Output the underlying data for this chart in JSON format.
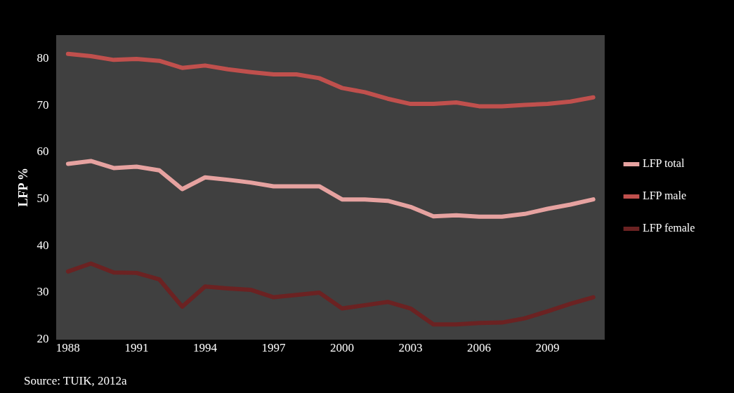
{
  "chart_data": {
    "type": "line",
    "ylabel": "LFP %",
    "categories": [
      "1988",
      null,
      null,
      "1991",
      null,
      null,
      "1994",
      null,
      null,
      "1997",
      null,
      null,
      "2000",
      null,
      null,
      "2003",
      null,
      null,
      "2006",
      null,
      null,
      "2009",
      null,
      null
    ],
    "series": [
      {
        "name": "LFP total",
        "color": "#e6a2a0",
        "values": [
          57.5,
          58.1,
          56.6,
          56.9,
          56.1,
          52.1,
          54.6,
          54.1,
          53.5,
          52.7,
          52.7,
          52.7,
          49.9,
          49.9,
          49.6,
          48.3,
          46.3,
          46.5,
          46.2,
          46.2,
          46.8,
          47.9,
          48.8,
          49.9
        ]
      },
      {
        "name": "LFP male",
        "color": "#c0504d",
        "values": [
          81,
          80.5,
          79.7,
          79.9,
          79.5,
          78,
          78.5,
          77.7,
          77.1,
          76.6,
          76.6,
          75.8,
          73.7,
          72.8,
          71.4,
          70.3,
          70.3,
          70.6,
          69.8,
          69.8,
          70.1,
          70.3,
          70.8,
          71.7
        ]
      },
      {
        "name": "LFP female",
        "color": "#6b2222",
        "values": [
          34.5,
          36.2,
          34.3,
          34.2,
          32.8,
          27.0,
          31.3,
          30.9,
          30.6,
          29.0,
          29.5,
          30.0,
          26.6,
          27.3,
          28.0,
          26.6,
          23.2,
          23.2,
          23.5,
          23.6,
          24.5,
          26.0,
          27.6,
          29.0
        ]
      }
    ],
    "ylim": [
      20,
      85
    ],
    "yticks": [
      20,
      30,
      40,
      50,
      60,
      70,
      80
    ],
    "grid": false,
    "legend": "right",
    "marker": "none",
    "line_style": "solid",
    "annotations": [
      "Source: TUIK, 2012a"
    ]
  }
}
